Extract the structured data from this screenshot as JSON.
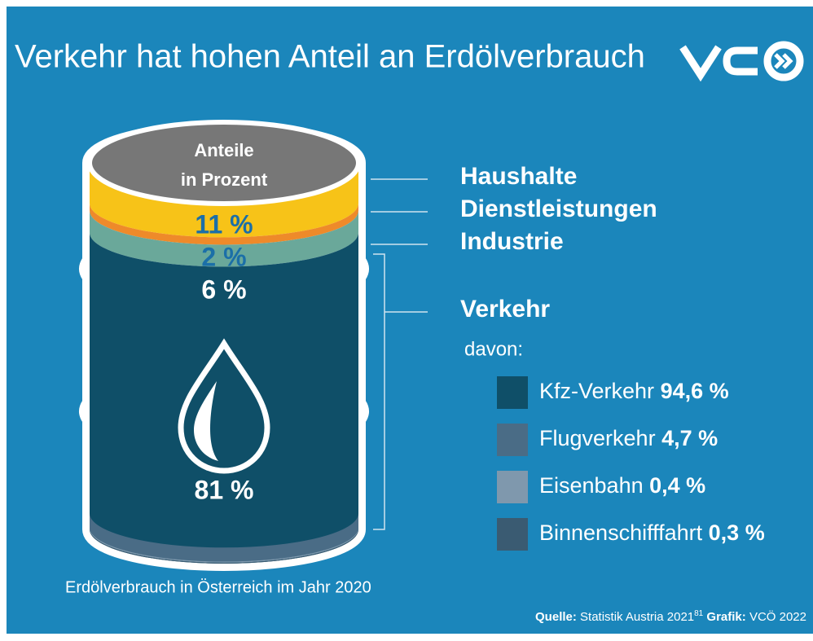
{
  "chart_data": {
    "type": "barrel",
    "title": "Verkehr hat hohen Anteil an Erdölverbrauch",
    "barrel_label": [
      "Anteile",
      "in Prozent"
    ],
    "categories": [
      "Haushalte",
      "Dienstleistungen",
      "Industrie",
      "Verkehr"
    ],
    "values": [
      11,
      2,
      6,
      81
    ],
    "value_labels": [
      "11 %",
      "2 %",
      "6 %",
      "81 %"
    ],
    "colors": [
      "#f7c318",
      "#ee8a2a",
      "#6aa89a",
      "#0f4f68"
    ],
    "breakdown": {
      "heading": "davon:",
      "categories": [
        "Kfz-Verkehr",
        "Flugverkehr",
        "Eisenbahn",
        "Binnenschifffahrt"
      ],
      "values": [
        94.6,
        4.7,
        0.4,
        0.3
      ],
      "value_labels": [
        "94,6 %",
        "4,7 %",
        "0,4 %",
        "0,3 %"
      ],
      "colors": [
        "#0f4f68",
        "#4a6c86",
        "#7f98ad",
        "#3a5b72"
      ]
    },
    "caption": "Erdölverbrauch in Österreich im Jahr 2020",
    "source_label": "Quelle:",
    "source": "Statistik Austria 2021",
    "footnote": "81",
    "credit_label": "Grafik:",
    "credit": "VCÖ 2022"
  }
}
